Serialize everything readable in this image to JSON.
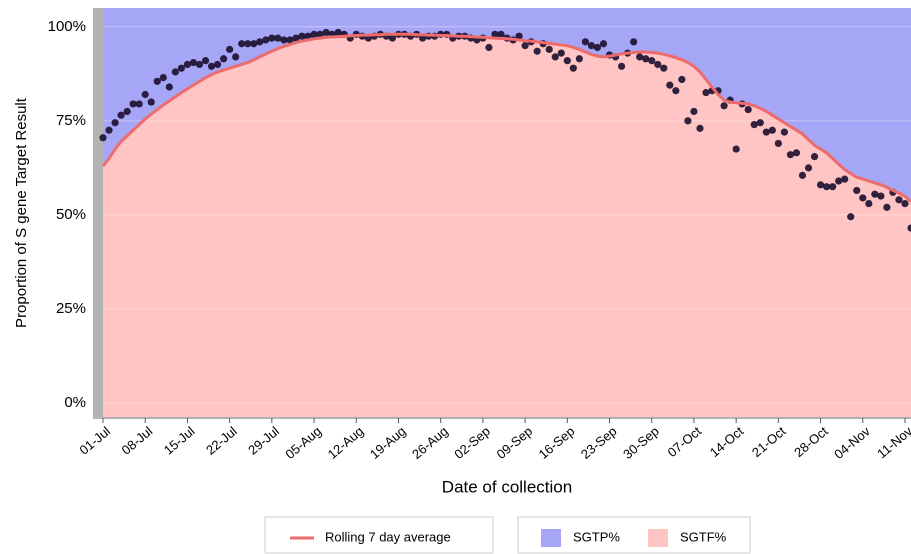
{
  "chart_data": {
    "type": "area",
    "x_label": "Date of collection",
    "y_label": "Proportion of S gene Target Result",
    "categories": [
      "01-Jul",
      null,
      null,
      null,
      null,
      null,
      null,
      "08-Jul",
      null,
      null,
      null,
      null,
      null,
      null,
      "15-Jul",
      null,
      null,
      null,
      null,
      null,
      null,
      "22-Jul",
      null,
      null,
      null,
      null,
      null,
      null,
      "29-Jul",
      null,
      null,
      null,
      null,
      null,
      null,
      "05-Aug",
      null,
      null,
      null,
      null,
      null,
      null,
      "12-Aug",
      null,
      null,
      null,
      null,
      null,
      null,
      "19-Aug",
      null,
      null,
      null,
      null,
      null,
      null,
      "26-Aug",
      null,
      null,
      null,
      null,
      null,
      null,
      "02-Sep",
      null,
      null,
      null,
      null,
      null,
      null,
      "09-Sep",
      null,
      null,
      null,
      null,
      null,
      null,
      "16-Sep",
      null,
      null,
      null,
      null,
      null,
      null,
      "23-Sep",
      null,
      null,
      null,
      null,
      null,
      null,
      "30-Sep",
      null,
      null,
      null,
      null,
      null,
      null,
      "07-Oct",
      null,
      null,
      null,
      null,
      null,
      null,
      "14-Oct",
      null,
      null,
      null,
      null,
      null,
      null,
      "21-Oct",
      null,
      null,
      null,
      null,
      null,
      null,
      "28-Oct",
      null,
      null,
      null,
      null,
      null,
      null,
      "04-Nov",
      null,
      null,
      null,
      null,
      null,
      null,
      "11-Nov",
      null
    ],
    "line": {
      "name": "Rolling 7 day average",
      "color": "#ee6b6b",
      "values": [
        63,
        65,
        67.5,
        69.5,
        71,
        72.5,
        74,
        75.5,
        76.8,
        78,
        79.2,
        80.3,
        81.4,
        82.5,
        83.5,
        84.5,
        85.5,
        86.5,
        87.3,
        88,
        88.5,
        89,
        89.5,
        90,
        90.5,
        91.2,
        92,
        92.8,
        93.5,
        94.2,
        94.8,
        95.3,
        95.8,
        96.2,
        96.5,
        96.8,
        97,
        97.2,
        97.3,
        97.4,
        97.5,
        97.6,
        97.7,
        97.8,
        97.8,
        97.9,
        97.9,
        98,
        98,
        98,
        98,
        98,
        97.9,
        97.9,
        97.8,
        97.8,
        97.7,
        97.7,
        97.6,
        97.5,
        97.5,
        97.4,
        97.3,
        97.2,
        97.1,
        97,
        96.9,
        96.8,
        96.7,
        96.5,
        96.3,
        96.2,
        96,
        95.8,
        95.6,
        95.4,
        95.2,
        95,
        94.5,
        94,
        93.3,
        92.7,
        92.2,
        92,
        92.2,
        92.5,
        92.8,
        93,
        93.2,
        93.3,
        93.3,
        93.2,
        93,
        92.7,
        92.3,
        91.8,
        91.2,
        90.5,
        89.5,
        88,
        86,
        84,
        82,
        80.5,
        80,
        79.8,
        79.7,
        79.5,
        79,
        78.3,
        77.5,
        76.5,
        75.5,
        74.5,
        73.5,
        72.5,
        71.5,
        70,
        68.5,
        67.5,
        66.5,
        65,
        63.5,
        62,
        61,
        60,
        59.5,
        59,
        58.5,
        58,
        57.3,
        56.5,
        55.8,
        55,
        53.5
      ]
    },
    "points": {
      "color": "#1c0f2e",
      "values": [
        70.5,
        72.5,
        74.5,
        76.5,
        77.5,
        79.5,
        79.5,
        82,
        80,
        85.5,
        86.5,
        84,
        88,
        89,
        90,
        90.5,
        90,
        91,
        89.5,
        90,
        91.5,
        94,
        92,
        95.5,
        95.5,
        95.5,
        96,
        96.5,
        97,
        97,
        96.5,
        96.5,
        97,
        97.5,
        97.5,
        98,
        98,
        98.5,
        98,
        98.5,
        98,
        97,
        98,
        97.5,
        97,
        97.5,
        98,
        97.5,
        97,
        98,
        98,
        97.5,
        98,
        97,
        97.5,
        97.5,
        98,
        98,
        97,
        97.5,
        97.5,
        97,
        96.5,
        97,
        94.5,
        98,
        98,
        97,
        96.5,
        97.5,
        95,
        96,
        93.5,
        95.5,
        94,
        92,
        93,
        91,
        89,
        91.5,
        96,
        95,
        94.5,
        95.5,
        92.5,
        92,
        89.5,
        93,
        96,
        92,
        91.5,
        91,
        90,
        89,
        84.5,
        83,
        86,
        75,
        77.5,
        73,
        82.5,
        83,
        83,
        79,
        80.5,
        67.5,
        79.5,
        78,
        74,
        74.5,
        72,
        72.5,
        69,
        72,
        66,
        66.5,
        60.5,
        62.5,
        65.5,
        58,
        57.5,
        57.5,
        59,
        59.5,
        49.5,
        56.5,
        54.5,
        53,
        55.5,
        55,
        52,
        56,
        54,
        53,
        46.5
      ]
    },
    "areas": [
      {
        "name": "SGTP%",
        "color": "#a6a6f7"
      },
      {
        "name": "SGTF%",
        "color": "#ffc4c4"
      }
    ],
    "ylim": [
      -4,
      105
    ],
    "yticks": [
      {
        "value": 0,
        "label": "0%"
      },
      {
        "value": 25,
        "label": "25%"
      },
      {
        "value": 50,
        "label": "50%"
      },
      {
        "value": 75,
        "label": "75%"
      },
      {
        "value": 100,
        "label": "100%"
      }
    ],
    "grid": true
  }
}
